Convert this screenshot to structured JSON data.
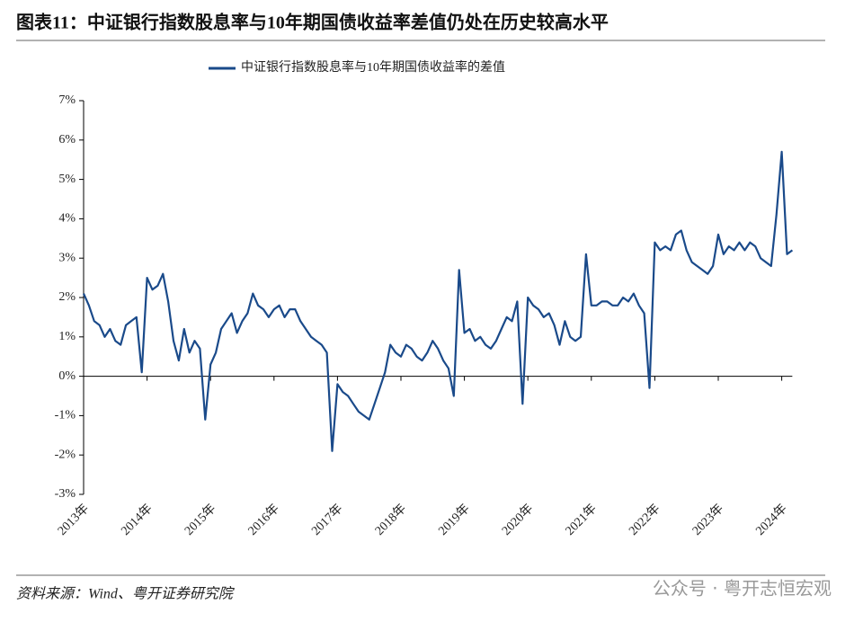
{
  "chart_data": {
    "type": "line",
    "title": "图表11：中证银行指数股息率与10年期国债收益率差值仍处在历史较高水平",
    "source": "资料来源：Wind、粤开证券研究院",
    "watermark": "公众号 · 粤开志恒宏观",
    "categories": [
      "2013年",
      null,
      null,
      null,
      null,
      null,
      null,
      null,
      null,
      null,
      null,
      null,
      "2014年",
      null,
      null,
      null,
      null,
      null,
      null,
      null,
      null,
      null,
      null,
      null,
      "2015年",
      null,
      null,
      null,
      null,
      null,
      null,
      null,
      null,
      null,
      null,
      null,
      "2016年",
      null,
      null,
      null,
      null,
      null,
      null,
      null,
      null,
      null,
      null,
      null,
      "2017年",
      null,
      null,
      null,
      null,
      null,
      null,
      null,
      null,
      null,
      null,
      null,
      "2018年",
      null,
      null,
      null,
      null,
      null,
      null,
      null,
      null,
      null,
      null,
      null,
      "2019年",
      null,
      null,
      null,
      null,
      null,
      null,
      null,
      null,
      null,
      null,
      null,
      "2020年",
      null,
      null,
      null,
      null,
      null,
      null,
      null,
      null,
      null,
      null,
      null,
      "2021年",
      null,
      null,
      null,
      null,
      null,
      null,
      null,
      null,
      null,
      null,
      null,
      "2022年",
      null,
      null,
      null,
      null,
      null,
      null,
      null,
      null,
      null,
      null,
      null,
      "2023年",
      null,
      null,
      null,
      null,
      null,
      null,
      null,
      null,
      null,
      null,
      null,
      "2024年",
      null,
      null
    ],
    "series": [
      {
        "name": "中证银行指数股息率与10年期国债收益率的差值",
        "color": "#1a4a8a",
        "values": [
          2.1,
          1.8,
          1.4,
          1.3,
          1.0,
          1.2,
          0.9,
          0.8,
          1.3,
          1.4,
          1.5,
          0.1,
          2.5,
          2.2,
          2.3,
          2.6,
          1.9,
          0.9,
          0.4,
          1.2,
          0.6,
          0.9,
          0.7,
          -1.1,
          0.3,
          0.6,
          1.2,
          1.4,
          1.6,
          1.1,
          1.4,
          1.6,
          2.1,
          1.8,
          1.7,
          1.5,
          1.7,
          1.8,
          1.5,
          1.7,
          1.7,
          1.4,
          1.2,
          1.0,
          0.9,
          0.8,
          0.6,
          -1.9,
          -0.2,
          -0.4,
          -0.5,
          -0.7,
          -0.9,
          -1.0,
          -1.1,
          -0.7,
          -0.3,
          0.1,
          0.8,
          0.6,
          0.5,
          0.8,
          0.7,
          0.5,
          0.4,
          0.6,
          0.9,
          0.7,
          0.4,
          0.2,
          -0.5,
          2.7,
          1.1,
          1.2,
          0.9,
          1.0,
          0.8,
          0.7,
          0.9,
          1.2,
          1.5,
          1.4,
          1.9,
          -0.7,
          2.0,
          1.8,
          1.7,
          1.5,
          1.6,
          1.3,
          0.8,
          1.4,
          1.0,
          0.9,
          1.0,
          3.1,
          1.8,
          1.8,
          1.9,
          1.9,
          1.8,
          1.8,
          2.0,
          1.9,
          2.1,
          1.8,
          1.6,
          -0.3,
          3.4,
          3.2,
          3.3,
          3.2,
          3.6,
          3.7,
          3.2,
          2.9,
          2.8,
          2.7,
          2.6,
          2.8,
          3.6,
          3.1,
          3.3,
          3.2,
          3.4,
          3.2,
          3.4,
          3.3,
          3.0,
          2.9,
          2.8,
          4.1,
          5.7,
          3.1,
          3.2
        ]
      }
    ],
    "ylim": [
      -3,
      7
    ],
    "yticks": [
      {
        "value": -3,
        "label": "-3%"
      },
      {
        "value": -2,
        "label": "-2%"
      },
      {
        "value": -1,
        "label": "-1%"
      },
      {
        "value": 0,
        "label": "0%"
      },
      {
        "value": 1,
        "label": "1%"
      },
      {
        "value": 2,
        "label": "2%"
      },
      {
        "value": 3,
        "label": "3%"
      },
      {
        "value": 4,
        "label": "4%"
      },
      {
        "value": 5,
        "label": "5%"
      },
      {
        "value": 6,
        "label": "6%"
      },
      {
        "value": 7,
        "label": "7%"
      }
    ],
    "legend": "top"
  }
}
